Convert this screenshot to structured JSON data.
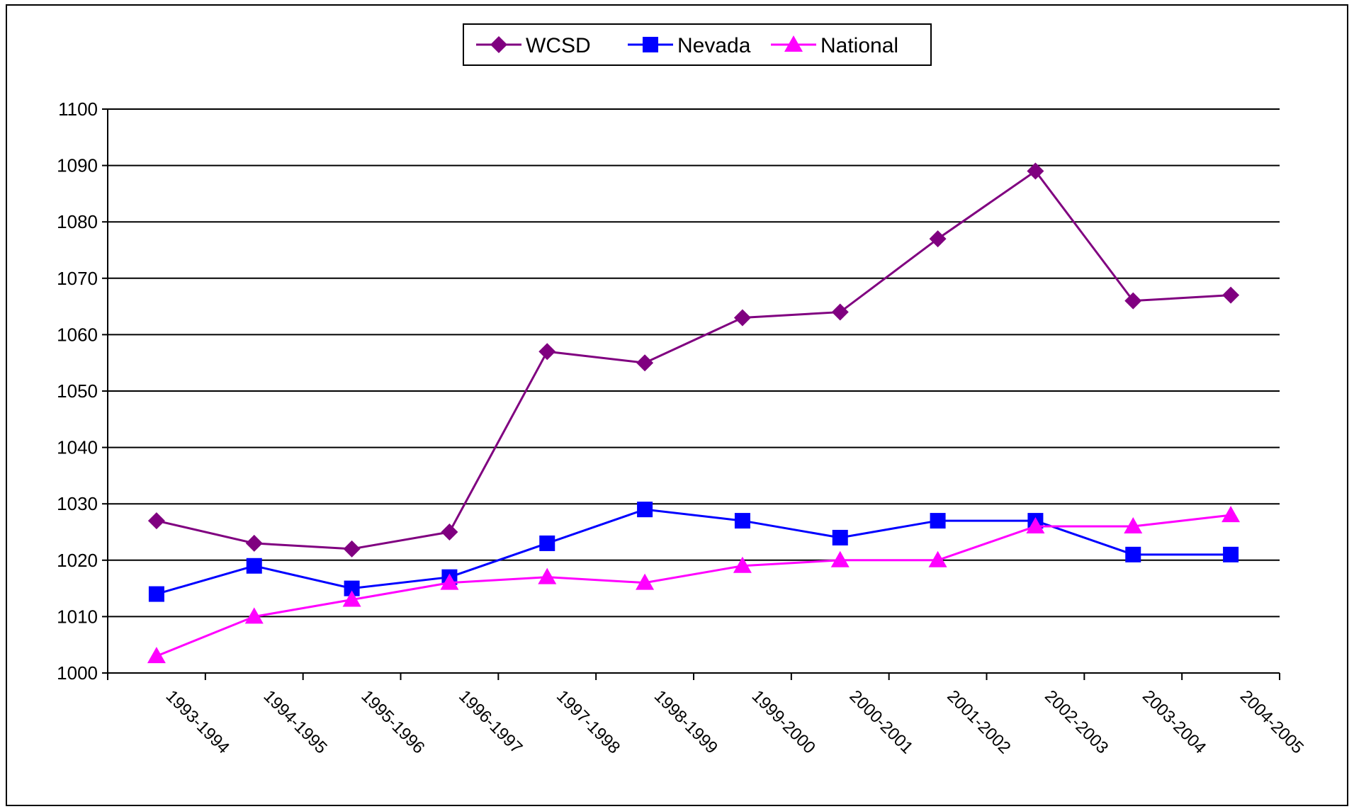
{
  "chart_data": {
    "type": "line",
    "title": "",
    "xlabel": "",
    "ylabel": "",
    "categories": [
      "1993-1994",
      "1994-1995",
      "1995-1996",
      "1996-1997",
      "1997-1998",
      "1998-1999",
      "1999-2000",
      "2000-2001",
      "2001-2002",
      "2002-2003",
      "2003-2004",
      "2004-2005"
    ],
    "ylim": [
      1000,
      1100
    ],
    "yticks": [
      1000,
      1010,
      1020,
      1030,
      1040,
      1050,
      1060,
      1070,
      1080,
      1090,
      1100
    ],
    "grid": true,
    "legend_position": "top-center",
    "series": [
      {
        "name": "WCSD",
        "color": "#800080",
        "marker": "diamond",
        "values": [
          1027,
          1023,
          1022,
          1025,
          1057,
          1055,
          1063,
          1064,
          1077,
          1089,
          1066,
          1067
        ]
      },
      {
        "name": "Nevada",
        "color": "#0000FF",
        "marker": "square",
        "values": [
          1014,
          1019,
          1015,
          1017,
          1023,
          1029,
          1027,
          1024,
          1027,
          1027,
          1021,
          1021
        ]
      },
      {
        "name": "National",
        "color": "#FF00FF",
        "marker": "triangle",
        "values": [
          1003,
          1010,
          1013,
          1016,
          1017,
          1016,
          1019,
          1020,
          1020,
          1026,
          1026,
          1028
        ]
      }
    ]
  }
}
